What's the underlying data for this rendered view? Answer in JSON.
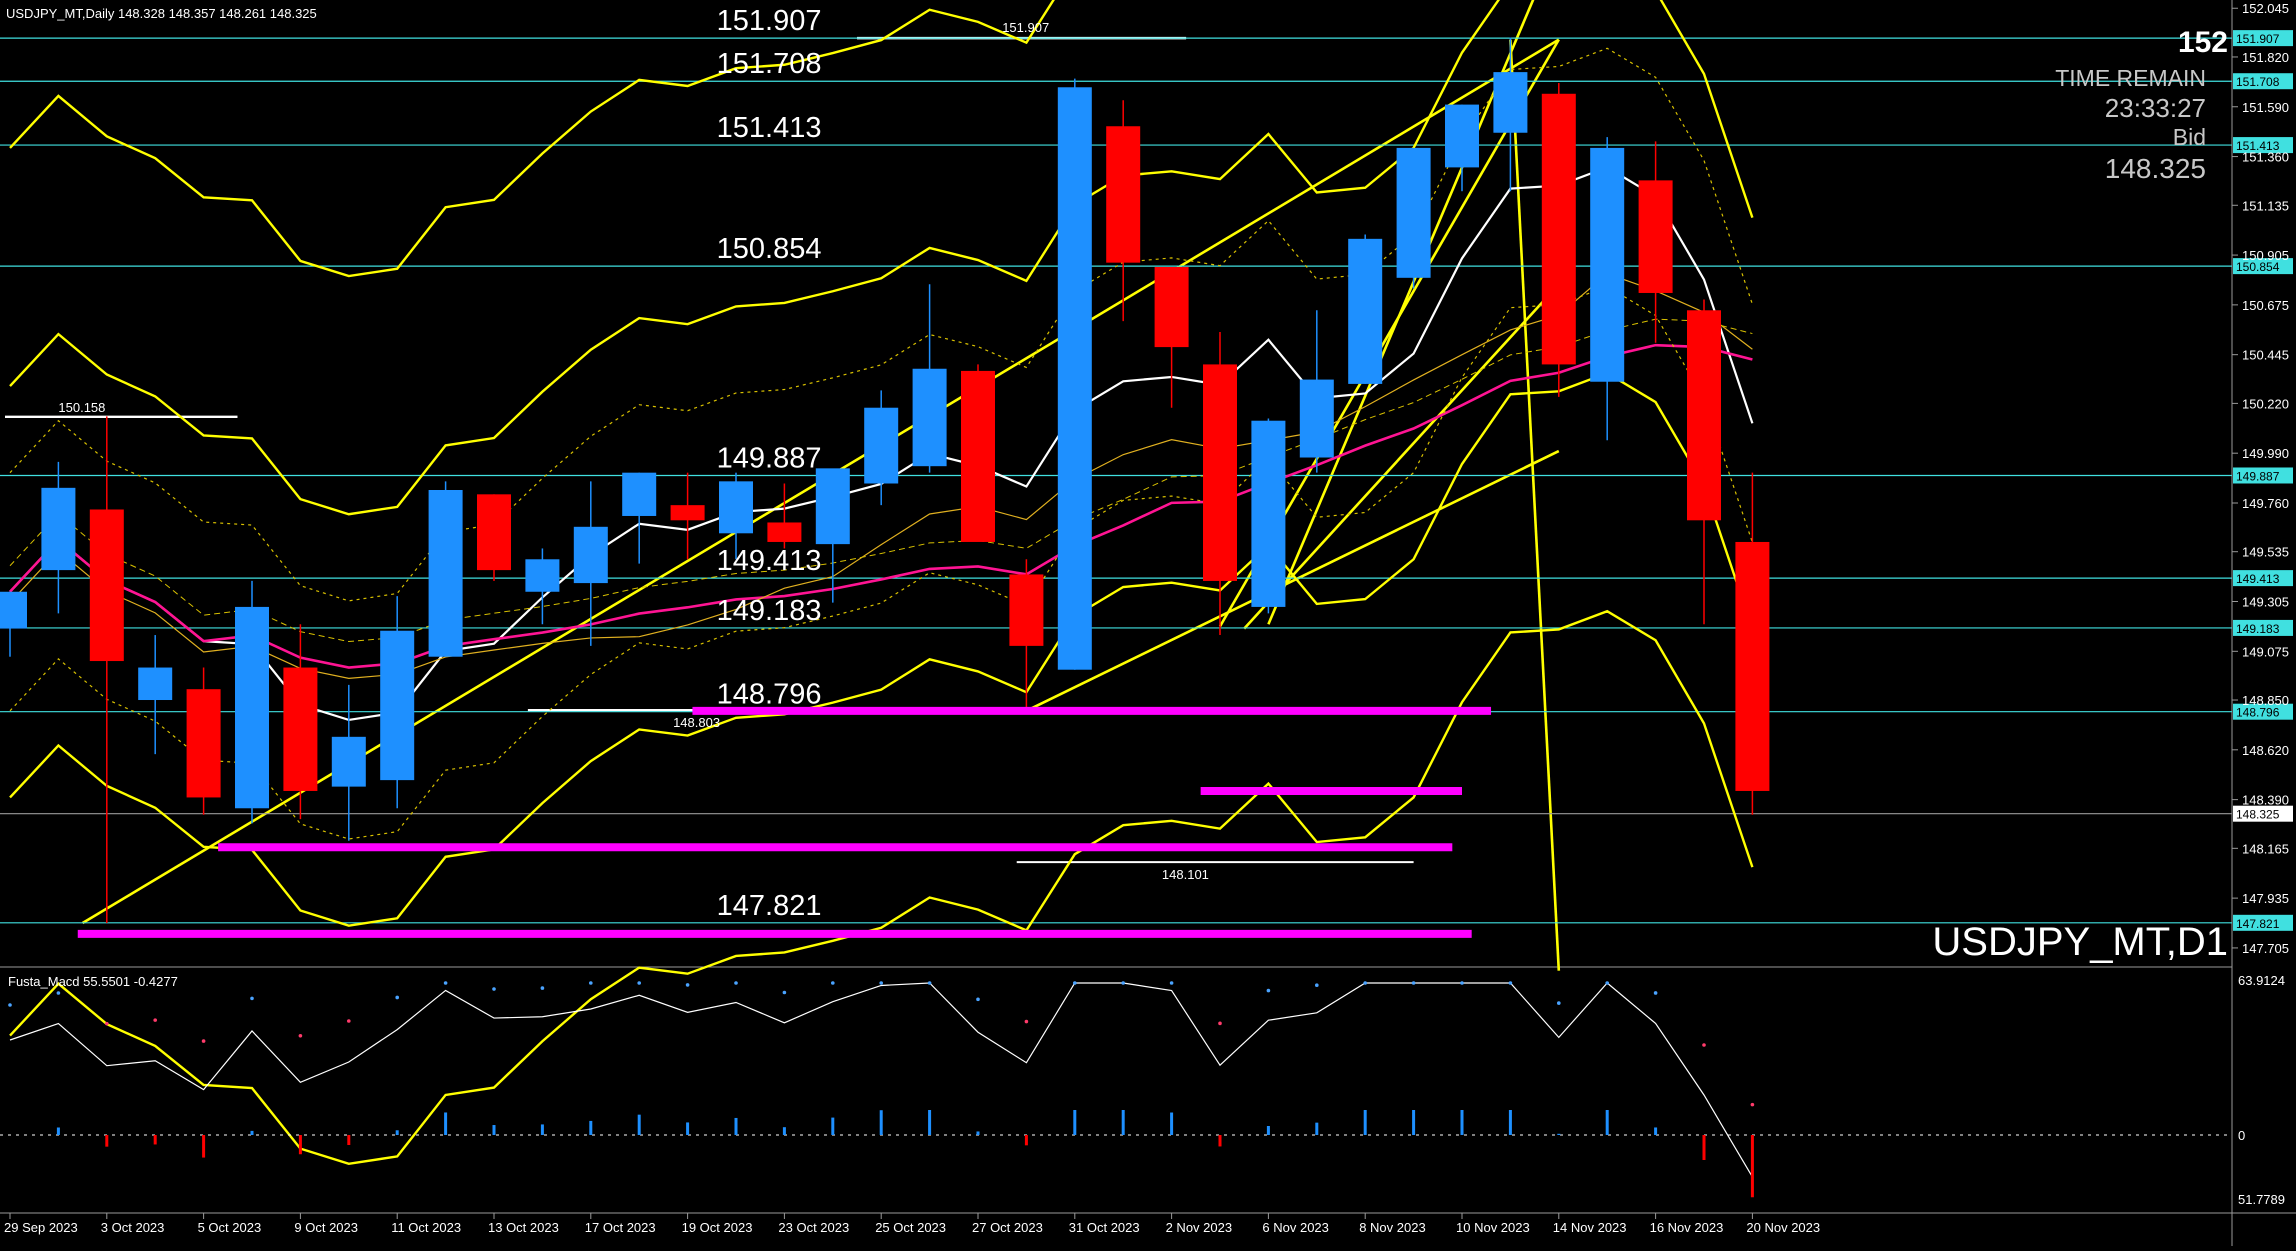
{
  "window": {
    "header": "USDJPY_MT,Daily  148.328 148.357 148.261 148.325",
    "watermark": "USDJPY_MT,D1"
  },
  "info_panel": {
    "big_price": "152",
    "time_remain_label": "TIME REMAIN",
    "time_remain_value": "23:33:27",
    "bid_label": "Bid",
    "bid_value": "148.325"
  },
  "indicator": {
    "label": "Fusta_Macd 55.5501  -0.4277",
    "scale_top": "63.9124",
    "scale_zero": "0",
    "scale_bottom": "51.7789"
  },
  "colors": {
    "background": "#000000",
    "bull": "#1E90FF",
    "bear": "#FF0000",
    "level_line": "#40E0E0",
    "channel": "#FFFF00",
    "support_resistance": "#FF00FF",
    "fast_ma": "#FFFFFF",
    "slow_ma": "#FF1493"
  },
  "chart_data": {
    "type": "candlestick",
    "symbol": "USDJPY_MT",
    "timeframe": "Daily",
    "ylim": [
      147.6,
      152.1
    ],
    "y_ticks": [
      "152.045",
      "151.820",
      "151.590",
      "151.360",
      "151.135",
      "150.905",
      "150.675",
      "150.445",
      "150.220",
      "149.990",
      "149.760",
      "149.535",
      "149.305",
      "149.075",
      "148.850",
      "148.620",
      "148.390",
      "148.165",
      "147.935",
      "147.705"
    ],
    "x_tick_labels": [
      "29 Sep 2023",
      "3 Oct 2023",
      "5 Oct 2023",
      "9 Oct 2023",
      "11 Oct 2023",
      "13 Oct 2023",
      "17 Oct 2023",
      "19 Oct 2023",
      "23 Oct 2023",
      "25 Oct 2023",
      "27 Oct 2023",
      "31 Oct 2023",
      "2 Nov 2023",
      "6 Nov 2023",
      "8 Nov 2023",
      "10 Nov 2023",
      "14 Nov 2023",
      "16 Nov 2023",
      "20 Nov 2023"
    ],
    "candles": [
      {
        "o": 149.18,
        "h": 149.35,
        "l": 149.05,
        "c": 149.35
      },
      {
        "o": 149.45,
        "h": 149.95,
        "l": 149.25,
        "c": 149.83
      },
      {
        "o": 149.73,
        "h": 150.16,
        "l": 147.82,
        "c": 149.03
      },
      {
        "o": 148.85,
        "h": 149.15,
        "l": 148.6,
        "c": 149.0
      },
      {
        "o": 148.9,
        "h": 149.0,
        "l": 148.32,
        "c": 148.4
      },
      {
        "o": 148.35,
        "h": 149.4,
        "l": 148.28,
        "c": 149.28
      },
      {
        "o": 149.0,
        "h": 149.2,
        "l": 148.3,
        "c": 148.43
      },
      {
        "o": 148.45,
        "h": 148.92,
        "l": 148.2,
        "c": 148.68
      },
      {
        "o": 148.48,
        "h": 149.33,
        "l": 148.35,
        "c": 149.17
      },
      {
        "o": 149.05,
        "h": 149.86,
        "l": 149.05,
        "c": 149.82
      },
      {
        "o": 149.8,
        "h": 149.8,
        "l": 149.4,
        "c": 149.45
      },
      {
        "o": 149.35,
        "h": 149.55,
        "l": 149.2,
        "c": 149.5
      },
      {
        "o": 149.39,
        "h": 149.86,
        "l": 149.1,
        "c": 149.65
      },
      {
        "o": 149.7,
        "h": 149.9,
        "l": 149.48,
        "c": 149.9
      },
      {
        "o": 149.75,
        "h": 149.9,
        "l": 149.5,
        "c": 149.68
      },
      {
        "o": 149.62,
        "h": 149.9,
        "l": 149.5,
        "c": 149.86
      },
      {
        "o": 149.67,
        "h": 149.85,
        "l": 149.55,
        "c": 149.58
      },
      {
        "o": 149.57,
        "h": 149.9,
        "l": 149.3,
        "c": 149.92
      },
      {
        "o": 149.85,
        "h": 150.28,
        "l": 149.75,
        "c": 150.2
      },
      {
        "o": 149.93,
        "h": 150.77,
        "l": 149.9,
        "c": 150.38
      },
      {
        "o": 150.37,
        "h": 150.4,
        "l": 149.6,
        "c": 149.58
      },
      {
        "o": 149.43,
        "h": 149.5,
        "l": 148.8,
        "c": 149.1
      },
      {
        "o": 148.99,
        "h": 151.72,
        "l": 148.99,
        "c": 151.68
      },
      {
        "o": 151.5,
        "h": 151.62,
        "l": 150.6,
        "c": 150.87
      },
      {
        "o": 150.85,
        "h": 150.85,
        "l": 150.2,
        "c": 150.48
      },
      {
        "o": 150.4,
        "h": 150.55,
        "l": 149.15,
        "c": 149.4
      },
      {
        "o": 149.28,
        "h": 150.15,
        "l": 149.25,
        "c": 150.14
      },
      {
        "o": 149.97,
        "h": 150.65,
        "l": 149.9,
        "c": 150.33
      },
      {
        "o": 150.31,
        "h": 151.0,
        "l": 150.31,
        "c": 150.98
      },
      {
        "o": 150.8,
        "h": 151.4,
        "l": 150.75,
        "c": 151.4
      },
      {
        "o": 151.31,
        "h": 151.6,
        "l": 151.2,
        "c": 151.6
      },
      {
        "o": 151.47,
        "h": 151.91,
        "l": 151.2,
        "c": 151.75
      },
      {
        "o": 151.65,
        "h": 151.7,
        "l": 150.25,
        "c": 150.4
      },
      {
        "o": 150.32,
        "h": 151.45,
        "l": 150.05,
        "c": 151.4
      },
      {
        "o": 151.25,
        "h": 151.43,
        "l": 150.5,
        "c": 150.73
      },
      {
        "o": 150.65,
        "h": 150.7,
        "l": 149.2,
        "c": 149.68
      },
      {
        "o": 149.58,
        "h": 149.9,
        "l": 148.32,
        "c": 148.43
      }
    ],
    "horizontal_levels": [
      "151.907",
      "151.708",
      "151.413",
      "150.854",
      "149.887",
      "149.413",
      "149.183",
      "148.796",
      "148.325",
      "147.821"
    ],
    "level_labels": [
      "151.907",
      "151.708",
      "151.413",
      "150.854",
      "149.887",
      "149.413",
      "149.183",
      "148.796",
      "147.821"
    ],
    "annotations": [
      "150.158",
      "151.907",
      "148.803",
      "148.101"
    ],
    "support_zones": [
      148.8,
      148.43,
      148.17,
      147.77
    ]
  }
}
